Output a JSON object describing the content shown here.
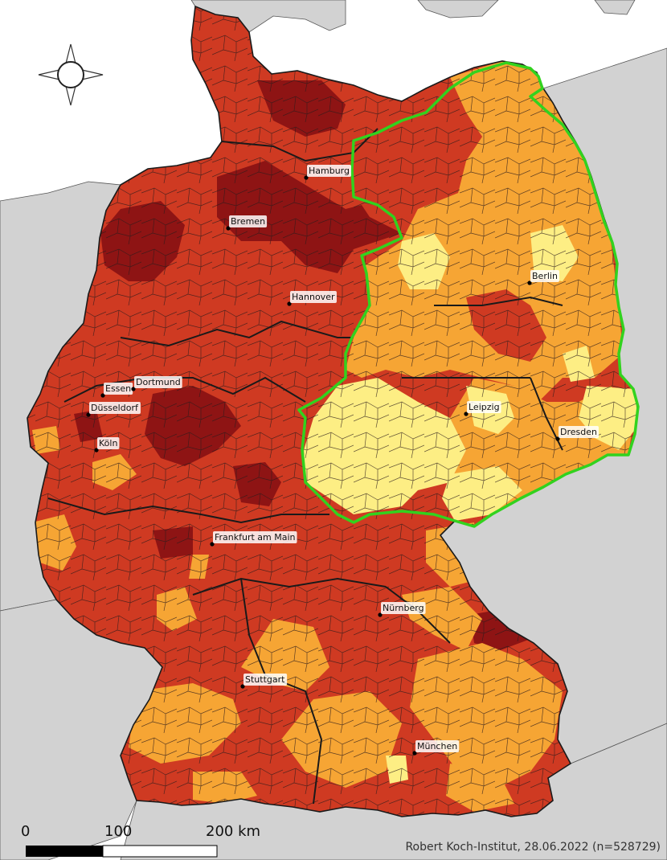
{
  "colors": {
    "sea": "#ffffff",
    "neighbor_land": "#d2d2d2",
    "border_dark": "#1a1a1a",
    "cls_darkest": "#8e1414",
    "cls_dark": "#cf3a22",
    "cls_orange": "#f6a534",
    "cls_light": "#fdee84",
    "highlight_outline": "#32d21e"
  },
  "compass": {
    "icon": "compass-rose-icon"
  },
  "cities": [
    {
      "id": "hamburg",
      "name": "Hamburg"
    },
    {
      "id": "bremen",
      "name": "Bremen"
    },
    {
      "id": "hannover",
      "name": "Hannover"
    },
    {
      "id": "berlin",
      "name": "Berlin"
    },
    {
      "id": "essen",
      "name": "Essen"
    },
    {
      "id": "dortmund",
      "name": "Dortmund"
    },
    {
      "id": "duesseldorf",
      "name": "Düsseldorf"
    },
    {
      "id": "koeln",
      "name": "Köln"
    },
    {
      "id": "leipzig",
      "name": "Leipzig"
    },
    {
      "id": "dresden",
      "name": "Dresden"
    },
    {
      "id": "frankfurt",
      "name": "Frankfurt am Main"
    },
    {
      "id": "nuernberg",
      "name": "Nürnberg"
    },
    {
      "id": "stuttgart",
      "name": "Stuttgart"
    },
    {
      "id": "muenchen",
      "name": "München"
    }
  ],
  "scale_bar": {
    "label_0": "0",
    "label_100": "100",
    "label_200": "200 km"
  },
  "credit": "Robert Koch-Institut, 28.06.2022 (n=528729)"
}
